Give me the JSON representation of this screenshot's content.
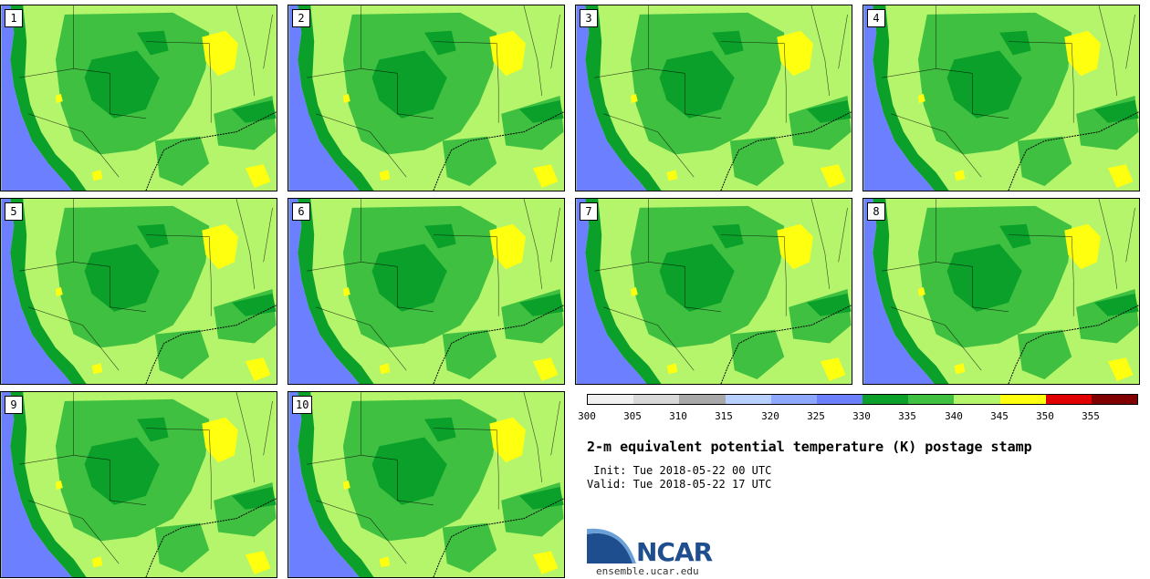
{
  "title": "2-m equivalent potential temperature (K) postage stamp",
  "init_label": "Init:",
  "init_value": "Tue 2018-05-22 00 UTC",
  "valid_label": "Valid:",
  "valid_value": "Tue 2018-05-22 17 UTC",
  "logo_text": "NCAR",
  "logo_url": "ensemble.ucar.edu",
  "members": [
    "1",
    "2",
    "3",
    "4",
    "5",
    "6",
    "7",
    "8",
    "9",
    "10"
  ],
  "colorbar": {
    "ticks": [
      "300",
      "305",
      "310",
      "315",
      "320",
      "325",
      "330",
      "335",
      "340",
      "345",
      "350",
      "355"
    ],
    "colors": [
      "#f0f0f0",
      "#d8d8d8",
      "#a8a8a8",
      "#b8d0ff",
      "#8fa8ff",
      "#6c80ff",
      "#0aa02a",
      "#40c040",
      "#b4f56c",
      "#ffff10",
      "#e00000",
      "#800000"
    ]
  },
  "map_colors": {
    "ocean": "#6c80ff",
    "coast": "#0aa02a",
    "land_low": "#b4f56c",
    "land_mid": "#40c040",
    "land_high": "#0aa02a",
    "hot": "#ffff10"
  }
}
